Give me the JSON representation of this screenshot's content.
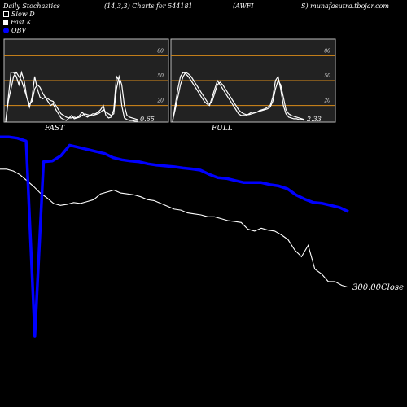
{
  "header": {
    "title": "Daily Stochastics",
    "params": "(14,3,3) Charts for 544181",
    "ticker_left": "(AWFI",
    "ticker_right": "S) munafasutra.tbojar.com"
  },
  "legend": [
    {
      "label": "Slow  D",
      "icon": "hollow-square-icon"
    },
    {
      "label": "Fast  K",
      "icon": "filled-square-icon"
    },
    {
      "label": "OBV",
      "icon": "blue-dot-icon",
      "color": "#0000ff"
    }
  ],
  "colors": {
    "background": "#000000",
    "obv": "#0000ff",
    "price": "#ffffff",
    "band": "#d98c1a",
    "panel": "#222222"
  },
  "chart_data": [
    {
      "type": "line",
      "panel_label": "FAST",
      "ylim": [
        0,
        100
      ],
      "yticks": [
        "80",
        "50",
        "20"
      ],
      "bands": [
        80,
        50,
        20
      ],
      "last_value_label": "0.65",
      "series": [
        {
          "name": "Slow D",
          "values": [
            2,
            25,
            40,
            55,
            60,
            55,
            50,
            40,
            30,
            22,
            25,
            40,
            45,
            42,
            35,
            30,
            28,
            26,
            25,
            20,
            15,
            10,
            8,
            6,
            5,
            5,
            6,
            5,
            6,
            8,
            10,
            9,
            8,
            8,
            9,
            10,
            12,
            15,
            12,
            10,
            8,
            10,
            40,
            55,
            45,
            20,
            8,
            6,
            5,
            4,
            3
          ]
        },
        {
          "name": "Fast K",
          "values": [
            0,
            30,
            60,
            60,
            55,
            45,
            60,
            50,
            30,
            18,
            30,
            55,
            40,
            30,
            28,
            30,
            25,
            20,
            22,
            15,
            10,
            5,
            3,
            2,
            5,
            8,
            4,
            5,
            8,
            12,
            8,
            6,
            8,
            10,
            10,
            12,
            15,
            20,
            8,
            5,
            6,
            15,
            55,
            50,
            20,
            5,
            3,
            2,
            2,
            1,
            1
          ]
        }
      ]
    },
    {
      "type": "line",
      "panel_label": "FULL",
      "ylim": [
        0,
        100
      ],
      "yticks": [
        "80",
        "50",
        "20"
      ],
      "bands": [
        80,
        50,
        20
      ],
      "last_value_label": "2.33",
      "series": [
        {
          "name": "Slow D",
          "values": [
            2,
            15,
            30,
            45,
            55,
            60,
            58,
            55,
            50,
            45,
            40,
            35,
            30,
            25,
            22,
            25,
            35,
            45,
            48,
            45,
            40,
            35,
            30,
            25,
            20,
            15,
            12,
            10,
            9,
            9,
            10,
            11,
            12,
            13,
            14,
            15,
            16,
            18,
            25,
            40,
            50,
            45,
            30,
            15,
            10,
            8,
            7,
            6,
            5,
            4,
            3
          ]
        },
        {
          "name": "Fast K",
          "values": [
            0,
            20,
            40,
            55,
            60,
            58,
            55,
            50,
            45,
            40,
            35,
            30,
            25,
            22,
            20,
            30,
            40,
            50,
            45,
            40,
            35,
            30,
            25,
            20,
            15,
            10,
            8,
            8,
            8,
            10,
            12,
            12,
            12,
            14,
            15,
            16,
            18,
            20,
            30,
            50,
            55,
            40,
            20,
            10,
            6,
            5,
            4,
            4,
            3,
            3,
            2
          ]
        }
      ]
    },
    {
      "type": "line",
      "close_label": "300.00Close",
      "series": [
        {
          "name": "Price",
          "color": "#ffffff",
          "values": [
            60,
            60,
            58,
            54,
            48,
            42,
            35,
            30,
            24,
            22,
            23,
            25,
            24,
            26,
            28,
            34,
            36,
            38,
            35,
            34,
            33,
            31,
            28,
            27,
            24,
            21,
            18,
            17,
            14,
            13,
            12,
            10,
            10,
            8,
            6,
            5,
            4,
            -3,
            -5,
            -2,
            -4,
            -5,
            -9,
            -14,
            -25,
            -32,
            -20,
            -45,
            -50,
            -58,
            -58,
            -62,
            -64
          ]
        },
        {
          "name": "OBV",
          "color": "#0000ff",
          "values": [
            80,
            80,
            77,
            70,
            -400,
            20,
            22,
            35,
            60,
            55,
            50,
            45,
            40,
            30,
            25,
            22,
            20,
            15,
            12,
            10,
            8,
            5,
            3,
            0,
            -10,
            -18,
            -20,
            -25,
            -30,
            -30,
            -30,
            -35,
            -38,
            -45,
            -60,
            -70,
            -78,
            -80,
            -85,
            -90,
            -100
          ]
        }
      ]
    }
  ]
}
